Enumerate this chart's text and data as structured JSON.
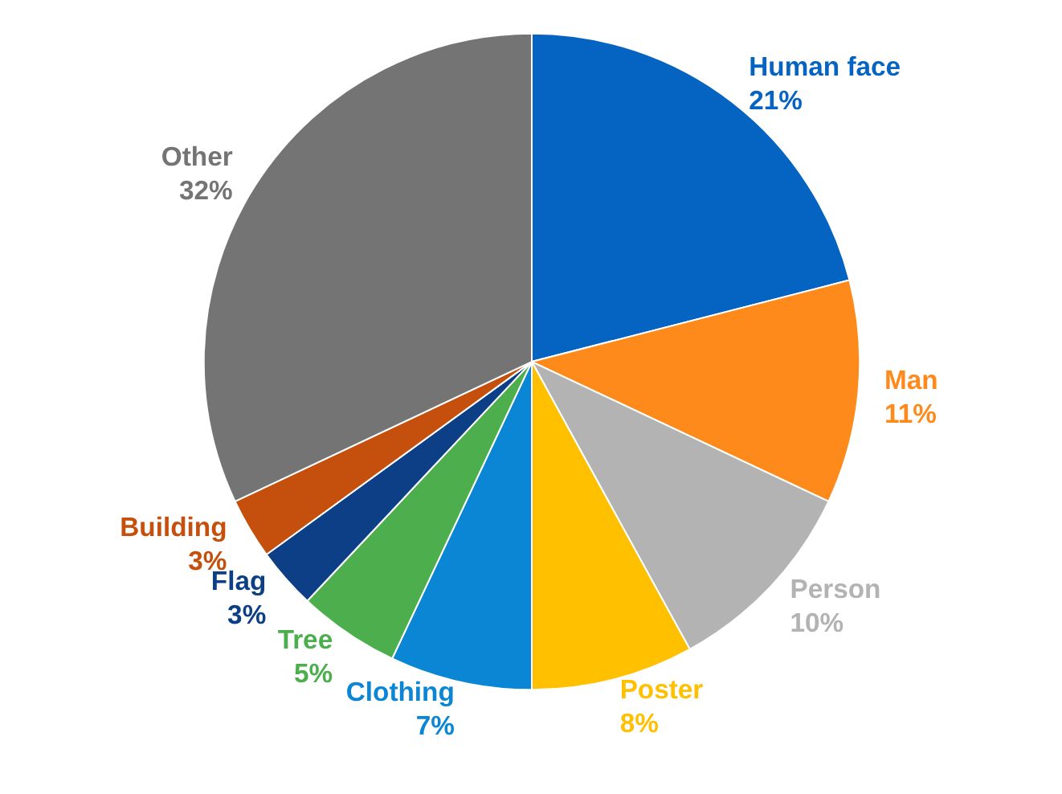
{
  "chart_data": {
    "type": "pie",
    "categories": [
      "Human face",
      "Man",
      "Person",
      "Poster",
      "Clothing",
      "Tree",
      "Flag",
      "Building",
      "Other"
    ],
    "values": [
      21,
      11,
      10,
      8,
      7,
      5,
      3,
      3,
      32
    ],
    "value_labels": [
      "21%",
      "11%",
      "10%",
      "8%",
      "7%",
      "5%",
      "3%",
      "3%",
      "32%"
    ],
    "colors": [
      "#0563c1",
      "#ff8a1c",
      "#b3b3b3",
      "#ffc000",
      "#0b86d4",
      "#4cae4c",
      "#0c3f85",
      "#c5500e",
      "#747474"
    ]
  }
}
